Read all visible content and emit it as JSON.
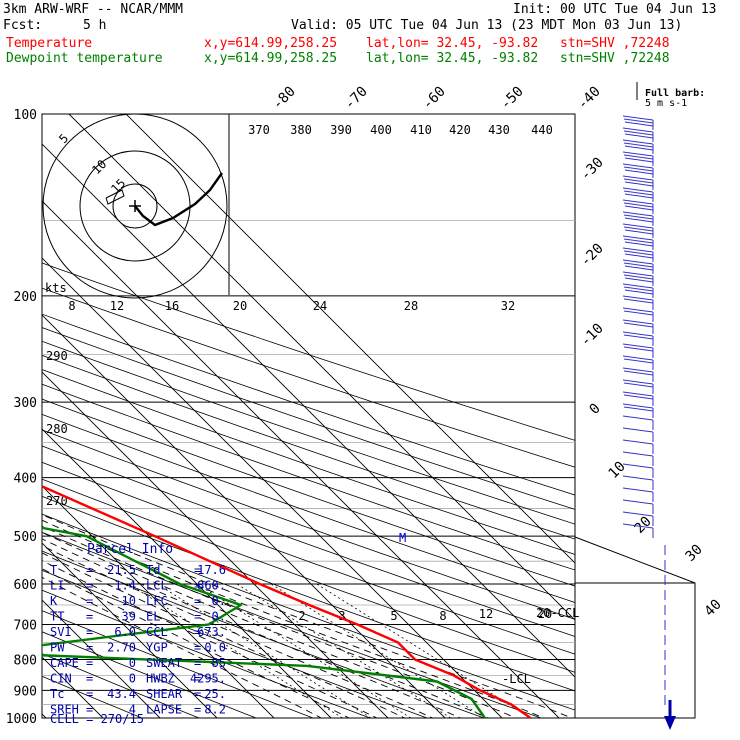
{
  "header": {
    "model": "3km ARW-WRF -- NCAR/MMM",
    "init": "Init: 00 UTC Tue 04 Jun 13",
    "fcst_label": "Fcst:",
    "fcst_value": "5 h",
    "valid": "Valid: 05 UTC Tue 04 Jun 13 (23 MDT Mon 03 Jun 13)",
    "temp_line": {
      "label": "Temperature",
      "coords": "x,y=614.99,258.25",
      "latlon": "lat,lon= 32.45, -93.82",
      "stn": "stn=SHV ,72248",
      "color": "#ff0000"
    },
    "dew_line": {
      "label": "Dewpoint temperature",
      "coords": "x,y=614.99,258.25",
      "latlon": "lat,lon= 32.45, -93.82",
      "stn": "stn=SHV ,72248",
      "color": "#008000"
    }
  },
  "chart_data": {
    "type": "line",
    "pressure_ticks": [
      "100",
      "200",
      "300",
      "400",
      "500",
      "600",
      "700",
      "800",
      "900",
      "1000"
    ],
    "pressure_levels": [
      100,
      200,
      300,
      400,
      500,
      600,
      700,
      800,
      900,
      1000
    ],
    "isotherm_top_labels": [
      "-80",
      "-70",
      "-60",
      "-50",
      "-40"
    ],
    "isotherm_right_labels": [
      "-30",
      "-20",
      "-10",
      "0",
      "10",
      "20",
      "30",
      "40"
    ],
    "theta_top_labels": [
      "370",
      "380",
      "390",
      "400",
      "410",
      "420",
      "430",
      "440"
    ],
    "theta_left_labels": [
      "290",
      "280",
      "270"
    ],
    "mixing_ratio_mid_labels": [
      "8",
      "12",
      "16",
      "20",
      "24",
      "28",
      "32"
    ],
    "mixing_ratio_low_labels": [
      "2",
      "3",
      "5",
      "8",
      "12",
      "20"
    ],
    "hodograph_rings": [
      "5",
      "10",
      "15"
    ],
    "hodograph_unit": "kts",
    "barb_legend": "Full barb: 5 m s-1",
    "annotations": {
      "lcl": "-LCL",
      "ccl": "-CCL",
      "m": "M",
      "ccl_marker": "20"
    },
    "series": [
      {
        "name": "Temperature",
        "color": "#ff0000",
        "points": [
          [
            -46,
            100
          ],
          [
            -50,
            125
          ],
          [
            -54,
            150
          ],
          [
            -57,
            175
          ],
          [
            -58,
            200
          ],
          [
            -50,
            250
          ],
          [
            -35,
            300
          ],
          [
            -22,
            400
          ],
          [
            -9,
            500
          ],
          [
            1,
            600
          ],
          [
            6,
            650
          ],
          [
            11,
            700
          ],
          [
            15,
            750
          ],
          [
            15,
            800
          ],
          [
            19,
            850
          ],
          [
            21,
            900
          ],
          [
            24,
            950
          ],
          [
            25,
            1000
          ]
        ]
      },
      {
        "name": "Dewpoint temperature",
        "color": "#008000",
        "points": [
          [
            -66,
            100
          ],
          [
            -68,
            125
          ],
          [
            -71,
            150
          ],
          [
            -75,
            175
          ],
          [
            -74,
            200
          ],
          [
            -65,
            250
          ],
          [
            -63,
            300
          ],
          [
            -50,
            350
          ],
          [
            -43,
            400
          ],
          [
            -42,
            450
          ],
          [
            -21,
            500
          ],
          [
            -13,
            600
          ],
          [
            -6,
            650
          ],
          [
            -15,
            700
          ],
          [
            -60,
            780
          ],
          [
            -5,
            820
          ],
          [
            15,
            870
          ],
          [
            18,
            930
          ],
          [
            17,
            1000
          ]
        ]
      }
    ]
  },
  "parcel_info": {
    "title": "Parcel Info",
    "rows": [
      {
        "l1": "T",
        "v1": "21.5",
        "l2": "Td",
        "v2": "17.6"
      },
      {
        "l1": "LI",
        "v1": "1.4",
        "l2": "LCL",
        "v2": "860."
      },
      {
        "l1": "K",
        "v1": "10",
        "l2": "LFC",
        "v2": "0."
      },
      {
        "l1": "TT",
        "v1": "39",
        "l2": "EL",
        "v2": "0."
      },
      {
        "l1": "SVI",
        "v1": "6.0",
        "l2": "CCL",
        "v2": "673."
      },
      {
        "l1": "PW",
        "v1": "2.70",
        "l2": "YGP",
        "v2": "0.0"
      },
      {
        "l1": "CAPE",
        "v1": "0",
        "l2": "SWEAT",
        "v2": "85"
      },
      {
        "l1": "CIN",
        "v1": "0",
        "l2": "HWBZ",
        "v2": "4295."
      },
      {
        "l1": "Tc",
        "v1": "43.4",
        "l2": "SHEAR",
        "v2": "25."
      },
      {
        "l1": "SREH",
        "v1": "4",
        "l2": "LAPSE",
        "v2": "8.2"
      }
    ],
    "cell_label": "CELL",
    "cell_value": "270/15"
  }
}
